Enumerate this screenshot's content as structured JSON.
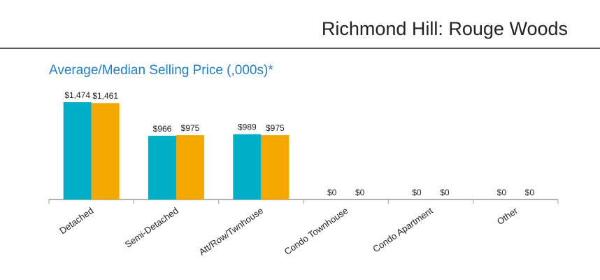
{
  "header": {
    "title": "Richmond Hill: Rouge Woods"
  },
  "chart_data": {
    "type": "bar",
    "title": "Average/Median Selling Price (,000s)*",
    "categories": [
      "Detached",
      "Semi-Detached",
      "Att/Row/Twnhouse",
      "Condo Townhouse",
      "Condo Apartment",
      "Other"
    ],
    "series": [
      {
        "color": "#00aec7",
        "values": [
          1474,
          966,
          989,
          0,
          0,
          0
        ],
        "value_labels": [
          "$1,474",
          "$966",
          "$989",
          "$0",
          "$0",
          "$0"
        ]
      },
      {
        "color": "#f5a800",
        "values": [
          1461,
          975,
          975,
          0,
          0,
          0
        ],
        "value_labels": [
          "$1,461",
          "$975",
          "$975",
          "$0",
          "$0",
          "$0"
        ]
      }
    ],
    "ylim": [
      0,
      1600
    ],
    "grid": false,
    "legend": "none"
  },
  "colors": {
    "title": "#1f7fc4",
    "axis": "#999999"
  }
}
